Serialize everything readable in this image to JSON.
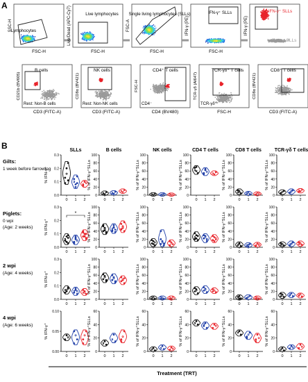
{
  "panel_labels": {
    "a": "A",
    "b": "B"
  },
  "colors": {
    "red": "#e8232a",
    "blue": "#1f3ea8",
    "black": "#111111",
    "gray": "#9a9a9a"
  },
  "panel_a": {
    "top_row": [
      {
        "y_label": "SSC-H",
        "x_label": "FSC-H",
        "gate_label": "Lymphocytes",
        "style": "density"
      },
      {
        "y_label": "Live/Dead (APC-Cy7)",
        "x_label": "FSC-H",
        "gate_label": "Live lymphocytes",
        "style": "density"
      },
      {
        "y_label": "FSC-A",
        "x_label": "FSC-H",
        "gate_label": "Single living lymphocytes (SLLs)",
        "style": "density"
      },
      {
        "y_label": "IFN-γ (PE)",
        "x_label": "FSC-H",
        "gate_label": "IFN-γ⁺ SLLs",
        "style": "density"
      },
      {
        "y_label": "IFN-γ (PE)",
        "x_label": "",
        "gate_label": "IFN-γ⁺ SLLs",
        "style": "overlay",
        "extra_label": "SLLs"
      }
    ],
    "bottom_row": [
      {
        "y_label": "CD21b (BV605)",
        "x_label": "CD3 (FITC-A)",
        "gate_label": "B cells",
        "extra_label": "Rest: Non-B cells"
      },
      {
        "y_label": "CD8α (BV421)",
        "x_label": "CD3 (FITC-A)",
        "gate_label": "NK cells",
        "extra_label": "Rest: Non-NK cells"
      },
      {
        "y_label": "FSC-H",
        "x_label": "CD4 (BV480)",
        "gate_label": "CD4⁺ T cells",
        "extra_label": "CD4⁻"
      },
      {
        "y_label": "TCR-γδ (Al647)",
        "x_label": "FSC-H",
        "gate_label": "TCR-γδ⁺ T cells",
        "extra_label": "TCR-γδ⁻"
      },
      {
        "y_label": "CD8α (BV421)",
        "x_label": "CD3 (FITC-A)",
        "gate_label": "CD8⁺ T cells",
        "extra_label": ""
      }
    ]
  },
  "chart_data": {
    "type": "violin",
    "columns": [
      "SLLs",
      "B cells",
      "NK cells",
      "CD4 T cells",
      "CD8 T cells",
      "TCR-γδ T cells"
    ],
    "ylabel_first_column": "% IFN-γ⁺",
    "ylabel_other_columns": "% of IFN-γ⁺SLLs",
    "xlabel": "Treatment (TRT)",
    "treatments": [
      "0",
      "1",
      "2"
    ],
    "rows": [
      {
        "label": "Gilts:",
        "sublabel": "1 week before farrowing",
        "ylim_first": [
          0,
          0.3
        ],
        "yticks_first": [
          "0.0",
          "0.1",
          "0.2",
          "0.3"
        ],
        "ylim_other": [
          0,
          100
        ],
        "yticks_other": [
          "0",
          "20",
          "40",
          "60",
          "80",
          "100"
        ],
        "data": [
          [
            [
              0.13,
              0.2,
              0.24,
              0.09,
              0.16,
              0.11
            ],
            [
              0.12,
              0.06,
              0.09,
              0.1,
              0.08,
              0.14
            ],
            [
              0.08,
              0.1,
              0.09,
              0.07
            ]
          ],
          [
            [
              5,
              3,
              7,
              4
            ],
            [
              6,
              4,
              8,
              5
            ],
            [
              10,
              8,
              12
            ]
          ],
          [
            [
              2,
              1,
              3
            ],
            [
              1,
              2,
              3,
              1
            ],
            [
              2,
              1,
              1
            ]
          ],
          [
            [
              62,
              70,
              55,
              68,
              60
            ],
            [
              55,
              62,
              58,
              52,
              65
            ],
            [
              54,
              52,
              57
            ]
          ],
          [
            [
              7,
              10,
              5,
              12,
              8
            ],
            [
              4,
              6,
              3,
              5
            ],
            [
              3,
              5,
              4,
              2
            ]
          ],
          [
            [
              5,
              8,
              10,
              6
            ],
            [
              6,
              9,
              12,
              7,
              10
            ],
            [
              12,
              10,
              13,
              9
            ]
          ]
        ],
        "significance": []
      },
      {
        "label": "Piglets:",
        "sublabel": "0 wpi",
        "sublabel2": "(Age: 2 weeks)",
        "ylim_first": [
          0,
          0.3
        ],
        "yticks_first": [
          "0.0",
          "0.1",
          "0.2",
          "0.3"
        ],
        "ylim_other": [
          0,
          100
        ],
        "yticks_other": [
          "0",
          "20",
          "40",
          "60",
          "80",
          "100"
        ],
        "data": [
          [
            [
              0.06,
              0.04,
              0.07,
              0.05,
              0.08,
              0.03,
              0.06,
              0.04,
              0.09,
              0.05
            ],
            [
              0.04,
              0.06,
              0.05,
              0.03,
              0.07,
              0.05,
              0.04,
              0.08
            ],
            [
              0.08,
              0.1,
              0.07,
              0.12,
              0.09,
              0.06,
              0.11,
              0.08,
              0.1
            ]
          ],
          [
            [
              40,
              45,
              35,
              52,
              48,
              38,
              55,
              42
            ],
            [
              42,
              50,
              38,
              46,
              55,
              44,
              40,
              48
            ],
            [
              45,
              52,
              40,
              58,
              48,
              62,
              44,
              50
            ]
          ],
          [
            [
              10,
              15,
              5,
              18,
              8,
              12
            ],
            [
              8,
              12,
              5,
              40,
              15,
              10,
              20
            ],
            [
              5,
              10,
              8,
              15,
              12
            ]
          ],
          [
            [
              25,
              30,
              18,
              35,
              22,
              28,
              20
            ],
            [
              22,
              28,
              15,
              30,
              25,
              20
            ],
            [
              18,
              25,
              22,
              28,
              15,
              20
            ]
          ],
          [
            [
              5,
              8,
              3,
              6,
              10,
              4
            ],
            [
              4,
              6,
              8,
              5,
              3
            ],
            [
              5,
              8,
              6,
              4,
              9,
              7
            ]
          ],
          [
            [
              6,
              8,
              5,
              10,
              7
            ],
            [
              5,
              9,
              12,
              7,
              8
            ],
            [
              8,
              10,
              6,
              12,
              9
            ]
          ]
        ],
        "significance": [
          {
            "from": 0,
            "to": 2,
            "label": "*"
          }
        ]
      },
      {
        "label": "2 wpi",
        "sublabel": "(Age: 4 weeks)",
        "ylim_first": [
          0,
          0.3
        ],
        "yticks_first": [
          "0.0",
          "0.1",
          "0.2",
          "0.3"
        ],
        "ylim_other": [
          0,
          100
        ],
        "yticks_other": [
          "0",
          "20",
          "40",
          "60",
          "80",
          "100"
        ],
        "data": [
          [
            [
              0.07,
              0.06,
              0.08,
              0.05,
              0.07,
              0.09
            ],
            [
              0.05,
              0.07,
              0.04,
              0.06,
              0.08,
              0.06
            ],
            [
              0.05,
              0.06,
              0.04,
              0.07,
              0.05
            ]
          ],
          [
            [
              50,
              58,
              45,
              62,
              55,
              48
            ],
            [
              48,
              55,
              42,
              60,
              52,
              45
            ],
            [
              45,
              50,
              40,
              55,
              48,
              52
            ]
          ],
          [
            [
              3,
              5,
              2,
              4
            ],
            [
              3,
              4,
              2,
              5
            ],
            [
              4,
              3,
              5,
              2
            ]
          ],
          [
            [
              20,
              25,
              15,
              28,
              22
            ],
            [
              22,
              26,
              18,
              30,
              24
            ],
            [
              20,
              22,
              18,
              25
            ]
          ],
          [
            [
              5,
              8,
              3,
              6,
              2
            ],
            [
              4,
              6,
              8,
              3
            ],
            [
              2,
              4,
              3,
              5
            ]
          ],
          [
            [
              8,
              12,
              6,
              14,
              10
            ],
            [
              10,
              14,
              8,
              12
            ],
            [
              9,
              12,
              7,
              11
            ]
          ]
        ],
        "significance": []
      },
      {
        "label": "4 wpi",
        "sublabel": "(Age: 6 weeks)",
        "ylim_first": [
          0,
          0.1
        ],
        "yticks_first": [
          "0.00",
          "0.05",
          "0.10"
        ],
        "ylim_other": [
          0,
          60
        ],
        "yticks_other": [
          "0",
          "20",
          "40",
          "60"
        ],
        "data": [
          [
            [
              0.03,
              0.04,
              0.035
            ],
            [
              0.02,
              0.04,
              0.03,
              0.05
            ],
            [
              0.02,
              0.04,
              0.05,
              0.03
            ]
          ],
          [
            [
              12,
              15,
              10
            ],
            [
              18,
              25,
              15
            ],
            [
              15,
              22,
              30,
              18
            ]
          ],
          [
            [
              3,
              5,
              2
            ],
            [
              5,
              8,
              4
            ],
            [
              3,
              6,
              4
            ]
          ],
          [
            [
              42,
              45,
              40
            ],
            [
              38,
              42,
              35,
              40
            ],
            [
              35,
              40,
              38
            ]
          ],
          [
            [
              28,
              30,
              25
            ],
            [
              20,
              25,
              28,
              22
            ],
            [
              15,
              25,
              20,
              18
            ]
          ],
          [
            [
              3,
              5,
              2
            ],
            [
              5,
              8,
              6
            ],
            [
              5,
              10,
              7
            ]
          ]
        ],
        "significance": []
      }
    ]
  }
}
